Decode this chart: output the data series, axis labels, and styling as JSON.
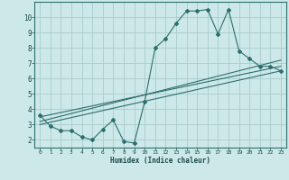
{
  "xlabel": "Humidex (Indice chaleur)",
  "ylabel": "",
  "bg_color": "#cce8e8",
  "grid_color": "#aacccc",
  "line_color": "#2d6e6e",
  "xlim": [
    -0.5,
    23.5
  ],
  "ylim": [
    1.5,
    11.0
  ],
  "yticks": [
    2,
    3,
    4,
    5,
    6,
    7,
    8,
    9,
    10
  ],
  "xticks": [
    0,
    1,
    2,
    3,
    4,
    5,
    6,
    7,
    8,
    9,
    10,
    11,
    12,
    13,
    14,
    15,
    16,
    17,
    18,
    19,
    20,
    21,
    22,
    23
  ],
  "series1_x": [
    0,
    1,
    2,
    3,
    4,
    5,
    6,
    7,
    8,
    9,
    10,
    11,
    12,
    13,
    14,
    15,
    16,
    17,
    18,
    19,
    20,
    21,
    22,
    23
  ],
  "series1_y": [
    3.6,
    2.9,
    2.6,
    2.6,
    2.2,
    2.0,
    2.7,
    3.3,
    1.9,
    1.8,
    4.5,
    8.0,
    8.6,
    9.6,
    10.4,
    10.4,
    10.5,
    8.9,
    10.5,
    7.8,
    7.3,
    6.8,
    6.8,
    6.5
  ],
  "series2_x": [
    0,
    23
  ],
  "series2_y": [
    3.0,
    6.5
  ],
  "series3_x": [
    0,
    23
  ],
  "series3_y": [
    3.2,
    7.2
  ],
  "series4_x": [
    0,
    23
  ],
  "series4_y": [
    3.5,
    6.8
  ]
}
